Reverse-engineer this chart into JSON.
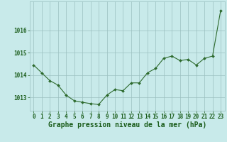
{
  "x": [
    0,
    1,
    2,
    3,
    4,
    5,
    6,
    7,
    8,
    9,
    10,
    11,
    12,
    13,
    14,
    15,
    16,
    17,
    18,
    19,
    20,
    21,
    22,
    23
  ],
  "y": [
    1014.45,
    1014.1,
    1013.75,
    1013.55,
    1013.1,
    1012.85,
    1012.78,
    1012.72,
    1012.68,
    1013.1,
    1013.35,
    1013.3,
    1013.65,
    1013.65,
    1014.1,
    1014.3,
    1014.75,
    1014.85,
    1014.65,
    1014.7,
    1014.45,
    1014.75,
    1014.85,
    1016.9
  ],
  "line_color": "#2d6a2d",
  "marker_color": "#2d6a2d",
  "bg_color": "#c8eaea",
  "grid_color": "#9bbfbf",
  "text_color": "#1a5c1a",
  "xlabel": "Graphe pression niveau de la mer (hPa)",
  "ylim_min": 1012.4,
  "ylim_max": 1017.3,
  "yticks": [
    1013,
    1014,
    1015,
    1016
  ],
  "xticks": [
    0,
    1,
    2,
    3,
    4,
    5,
    6,
    7,
    8,
    9,
    10,
    11,
    12,
    13,
    14,
    15,
    16,
    17,
    18,
    19,
    20,
    21,
    22,
    23
  ],
  "tick_fontsize": 5.5,
  "label_fontsize": 7.0
}
